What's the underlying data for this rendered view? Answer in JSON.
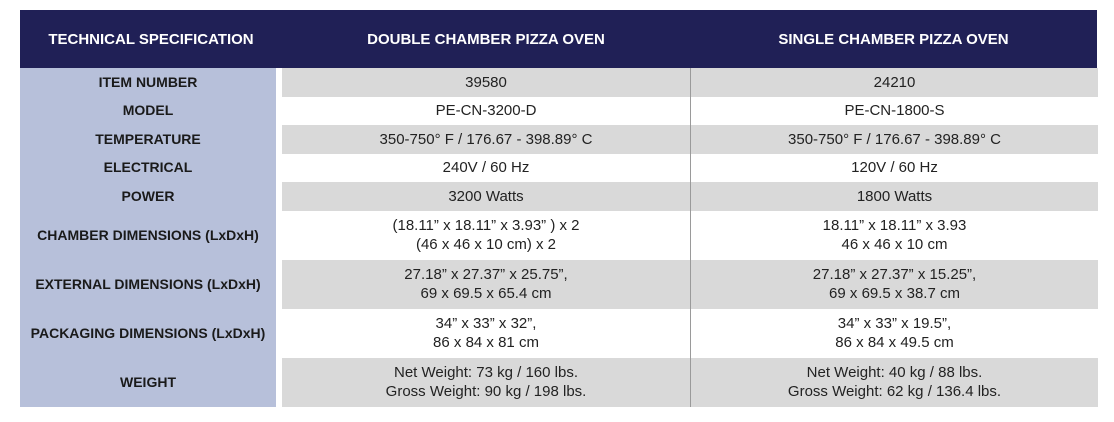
{
  "table": {
    "header": [
      "TECHNICAL SPECIFICATION",
      "DOUBLE CHAMBER PIZZA OVEN",
      "SINGLE CHAMBER PIZZA OVEN"
    ],
    "rows": [
      {
        "label": "ITEM NUMBER",
        "cells": [
          [
            "39580"
          ],
          [
            "24210"
          ]
        ]
      },
      {
        "label": "MODEL",
        "cells": [
          [
            "PE-CN-3200-D"
          ],
          [
            "PE-CN-1800-S"
          ]
        ]
      },
      {
        "label": "TEMPERATURE",
        "cells": [
          [
            "350-750° F / 176.67 - 398.89° C"
          ],
          [
            "350-750° F / 176.67 - 398.89° C"
          ]
        ]
      },
      {
        "label": "ELECTRICAL",
        "cells": [
          [
            "240V / 60 Hz"
          ],
          [
            "120V / 60 Hz"
          ]
        ]
      },
      {
        "label": "POWER",
        "cells": [
          [
            "3200 Watts"
          ],
          [
            "1800 Watts"
          ]
        ]
      },
      {
        "label": "CHAMBER DIMENSIONS (LxDxH)",
        "cells": [
          [
            "(18.11” x 18.11” x 3.93” ) x 2",
            "(46 x 46 x 10 cm) x 2"
          ],
          [
            "18.11” x 18.11” x 3.93",
            "46 x 46 x 10 cm"
          ]
        ]
      },
      {
        "label": "EXTERNAL DIMENSIONS (LxDxH)",
        "cells": [
          [
            "27.18” x 27.37” x 25.75”,",
            "69 x 69.5 x 65.4 cm"
          ],
          [
            "27.18” x 27.37” x 15.25”,",
            "69 x 69.5 x 38.7 cm"
          ]
        ]
      },
      {
        "label": "PACKAGING DIMENSIONS (LxDxH)",
        "cells": [
          [
            "34” x 33” x 32”,",
            "86 x 84 x 81 cm"
          ],
          [
            "34” x 33” x 19.5”,",
            "86 x 84 x 49.5 cm"
          ]
        ]
      },
      {
        "label": "WEIGHT",
        "cells": [
          [
            "Net Weight: 73 kg / 160 lbs.",
            "Gross Weight: 90 kg / 198 lbs."
          ],
          [
            "Net Weight: 40 kg / 88 lbs.",
            "Gross Weight: 62 kg / 136.4 lbs."
          ]
        ]
      }
    ]
  }
}
